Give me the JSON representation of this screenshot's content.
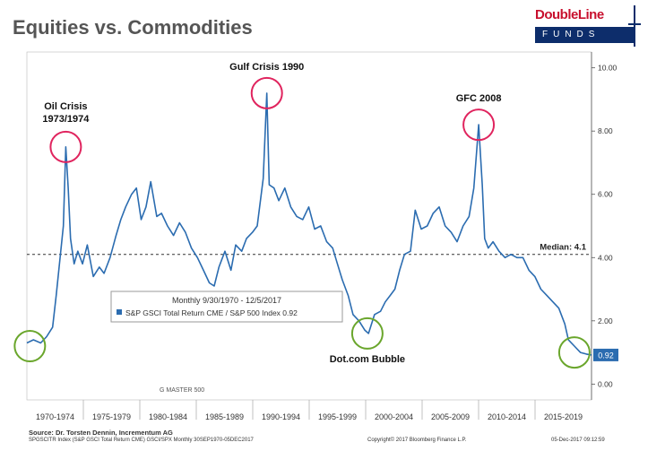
{
  "header": {
    "title": "Equities vs. Commodities",
    "logo_top": "DoubleLine",
    "logo_bottom": "FUNDS"
  },
  "footer": {
    "source": "Source: Dr. Torsten Dennin, Incrementum AG",
    "ticker": "SPGSCITR Index (S&P GSCI Total Return CME) GSCI/SPX  Monthly 30SEP1970-05DEC2017",
    "copyright": "Copyright© 2017 Bloomberg Finance L.P.",
    "timestamp": "05-Dec-2017 09:12:59"
  },
  "chart_data": {
    "type": "line",
    "title": "",
    "xlabel": "",
    "ylabel": "",
    "xlim": [
      1970.75,
      2017.93
    ],
    "ylim": [
      -0.5,
      10.5
    ],
    "y_ticks": [
      0,
      2,
      4,
      6,
      8,
      10
    ],
    "y_tick_labels": [
      "0.00",
      "2.00",
      "4.00",
      "6.00",
      "8.00",
      "10.00"
    ],
    "x_categories": [
      "1970-1974",
      "1975-1979",
      "1980-1984",
      "1985-1989",
      "1990-1994",
      "1995-1999",
      "2000-2004",
      "2005-2009",
      "2010-2014",
      "2015-2019"
    ],
    "grid": false,
    "colors": {
      "line": "#2b6cb0",
      "peak_circle": "#e0245e",
      "trough_circle": "#6aa62c",
      "median_line": "#333333",
      "last_value_box": "#2b6cb0"
    },
    "legend": {
      "position": "center-left",
      "period": "Monthly 9/30/1970 - 12/5/2017",
      "series_label": "S&P GSCI Total Return CME / S&P 500 Index 0.92"
    },
    "watermark": "G MASTER 500",
    "median": {
      "value": 4.1,
      "label": "Median: 4.1"
    },
    "last_value": {
      "value": 0.92,
      "label": "0.92"
    },
    "annotations": [
      {
        "label": "Oil Crisis",
        "label2": "1973/1974",
        "x": 1974.0,
        "y": 7.5,
        "kind": "peak"
      },
      {
        "label": "Gulf Crisis 1990",
        "label2": "",
        "x": 1990.8,
        "y": 9.2,
        "kind": "peak"
      },
      {
        "label": "GFC 2008",
        "label2": "",
        "x": 2008.5,
        "y": 8.2,
        "kind": "peak"
      },
      {
        "label": "Dot.com Bubble",
        "label2": "",
        "x": 1999.2,
        "y": 1.6,
        "kind": "trough"
      },
      {
        "label": "",
        "label2": "",
        "x": 1971.0,
        "y": 1.2,
        "kind": "trough"
      },
      {
        "label": "",
        "label2": "",
        "x": 2016.5,
        "y": 1.0,
        "kind": "trough"
      }
    ],
    "series": [
      {
        "name": "S&P GSCI Total Return CME / S&P 500 Index",
        "x": [
          1970.75,
          1971.3,
          1971.9,
          1972.4,
          1972.9,
          1973.2,
          1973.5,
          1973.8,
          1974.0,
          1974.2,
          1974.4,
          1974.7,
          1975.0,
          1975.4,
          1975.8,
          1976.3,
          1976.8,
          1977.2,
          1977.7,
          1978.2,
          1978.6,
          1979.0,
          1979.5,
          1979.9,
          1980.3,
          1980.7,
          1981.1,
          1981.6,
          1982.0,
          1982.5,
          1983.0,
          1983.5,
          1984.0,
          1984.5,
          1985.0,
          1985.5,
          1986.0,
          1986.4,
          1986.8,
          1987.3,
          1987.8,
          1988.2,
          1988.7,
          1989.1,
          1989.6,
          1990.0,
          1990.5,
          1990.8,
          1991.0,
          1991.4,
          1991.8,
          1992.3,
          1992.8,
          1993.3,
          1993.8,
          1994.3,
          1994.8,
          1995.3,
          1995.8,
          1996.3,
          1996.7,
          1997.1,
          1997.6,
          1998.0,
          1998.5,
          1999.0,
          1999.3,
          1999.8,
          2000.3,
          2000.7,
          2001.1,
          2001.5,
          2001.9,
          2002.3,
          2002.8,
          2003.2,
          2003.7,
          2004.2,
          2004.7,
          2005.2,
          2005.7,
          2006.2,
          2006.7,
          2007.2,
          2007.7,
          2008.1,
          2008.5,
          2008.8,
          2009.0,
          2009.3,
          2009.7,
          2010.2,
          2010.7,
          2011.2,
          2011.7,
          2012.2,
          2012.7,
          2013.2,
          2013.7,
          2014.2,
          2014.7,
          2015.2,
          2015.7,
          2016.0,
          2016.5,
          2017.0,
          2017.5,
          2017.93
        ],
        "values": [
          1.3,
          1.4,
          1.3,
          1.5,
          1.8,
          2.8,
          3.9,
          5.0,
          7.5,
          6.2,
          4.6,
          3.8,
          4.2,
          3.8,
          4.4,
          3.4,
          3.7,
          3.5,
          4.0,
          4.7,
          5.2,
          5.6,
          6.0,
          6.2,
          5.2,
          5.6,
          6.4,
          5.3,
          5.4,
          5.0,
          4.7,
          5.1,
          4.8,
          4.3,
          4.0,
          3.6,
          3.2,
          3.1,
          3.7,
          4.2,
          3.6,
          4.4,
          4.2,
          4.6,
          4.8,
          5.0,
          6.5,
          9.2,
          6.3,
          6.2,
          5.8,
          6.2,
          5.6,
          5.3,
          5.2,
          5.6,
          4.9,
          5.0,
          4.5,
          4.3,
          3.8,
          3.3,
          2.8,
          2.2,
          2.0,
          1.7,
          1.6,
          2.2,
          2.3,
          2.6,
          2.8,
          3.0,
          3.6,
          4.1,
          4.2,
          5.5,
          4.9,
          5.0,
          5.4,
          5.6,
          5.0,
          4.8,
          4.5,
          5.0,
          5.3,
          6.2,
          8.2,
          6.3,
          4.6,
          4.3,
          4.5,
          4.2,
          4.0,
          4.1,
          4.0,
          4.0,
          3.6,
          3.4,
          3.0,
          2.8,
          2.6,
          2.4,
          1.9,
          1.4,
          1.2,
          1.0,
          0.95,
          0.92
        ]
      }
    ]
  }
}
